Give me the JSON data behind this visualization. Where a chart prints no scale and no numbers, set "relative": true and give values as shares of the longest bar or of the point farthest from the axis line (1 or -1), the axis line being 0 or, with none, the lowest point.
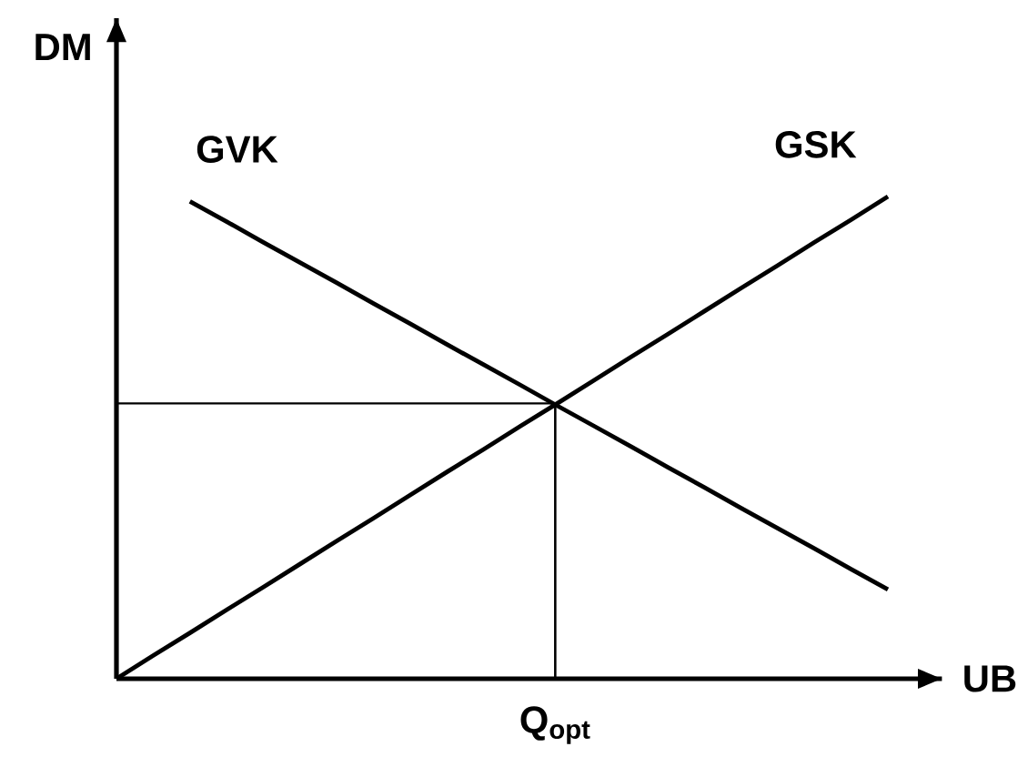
{
  "chart_data": {
    "type": "line",
    "relative": true,
    "xlabel": "UB",
    "ylabel": "DM",
    "categories": [
      null,
      null,
      null,
      null,
      null,
      null,
      null,
      null,
      null,
      null,
      null,
      null,
      null,
      null,
      null,
      null,
      null,
      null,
      null,
      null,
      null,
      null
    ],
    "series": [
      {
        "name": "GVK",
        "color": "#000000",
        "values": [
          null,
          null,
          0.99,
          0.948,
          0.905,
          0.863,
          0.821,
          0.778,
          0.736,
          0.693,
          0.651,
          0.609,
          0.566,
          0.524,
          0.482,
          0.439,
          0.397,
          0.354,
          0.312,
          0.27,
          0.227,
          0.185
        ]
      },
      {
        "name": "GSK",
        "color": "#000000",
        "values": [
          0,
          0.048,
          0.095,
          0.143,
          0.19,
          0.238,
          0.286,
          0.333,
          0.381,
          0.429,
          0.476,
          0.524,
          0.571,
          0.619,
          0.667,
          0.714,
          0.762,
          0.81,
          0.857,
          0.905,
          0.952,
          1
        ]
      }
    ],
    "ref_lines": [
      {
        "axis": "y",
        "value": 0.571
      }
    ],
    "annotations": [
      "Q$_{opt}$"
    ],
    "marker": "none",
    "line_style": "solid"
  }
}
